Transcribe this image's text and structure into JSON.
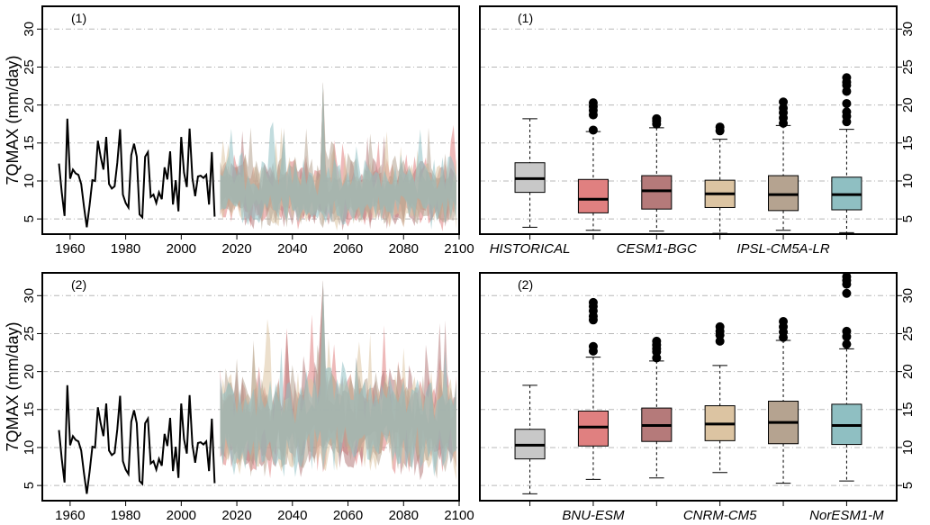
{
  "colors": {
    "historical": "#c8c8c8",
    "models": [
      "#e08080",
      "#b57a7a",
      "#dcc4a2",
      "#b5a390",
      "#8fbfc2"
    ],
    "series_line": "#000000"
  },
  "chart_data": [
    {
      "type": "line",
      "panel_label": "(1)",
      "ylabel": "7QMAX (mm/day)",
      "xlim": [
        1950,
        2100
      ],
      "ylim": [
        3,
        33
      ],
      "x_ticks": [
        1960,
        1980,
        2000,
        2020,
        2040,
        2060,
        2080,
        2100
      ],
      "y_ticks": [
        5,
        10,
        15,
        20,
        25,
        30
      ],
      "grid": true,
      "historical": {
        "x": [
          1956,
          1957,
          1958,
          1959,
          1960,
          1961,
          1962,
          1963,
          1964,
          1965,
          1966,
          1967,
          1968,
          1969,
          1970,
          1971,
          1972,
          1973,
          1974,
          1975,
          1976,
          1977,
          1978,
          1979,
          1980,
          1981,
          1982,
          1983,
          1984,
          1985,
          1986,
          1987,
          1988,
          1989,
          1990,
          1991,
          1992,
          1993,
          1994,
          1995,
          1996,
          1997,
          1998,
          1999,
          2000,
          2001,
          2002,
          2003,
          2004,
          2005,
          2006,
          2007,
          2008,
          2009,
          2010,
          2011,
          2012
        ],
        "y": [
          12.3,
          8.5,
          5.4,
          18.2,
          10.3,
          11.5,
          11.0,
          10.8,
          9.6,
          6.6,
          3.9,
          6.8,
          10.1,
          10.0,
          15.3,
          13.2,
          11.5,
          15.8,
          9.6,
          9.0,
          9.3,
          12.4,
          16.8,
          8.2,
          7.1,
          6.5,
          13.4,
          14.9,
          13.2,
          5.6,
          5.2,
          13.2,
          13.8,
          7.9,
          8.2,
          7.1,
          8.5,
          7.6,
          11.8,
          10.2,
          13.9,
          6.9,
          10.1,
          6.0,
          15.8,
          11.1,
          9.2,
          16.9,
          10.4,
          8.0,
          10.6,
          10.7,
          10.4,
          10.8,
          6.9,
          13.8,
          5.3
        ]
      },
      "projection_band": {
        "x_range": [
          2014,
          2099
        ],
        "n_models": 5,
        "center_level": 8.2,
        "spread": 4.0,
        "peak_max": 23.0
      }
    },
    {
      "type": "box",
      "panel_label": "(1)",
      "ylim": [
        3,
        33
      ],
      "y_ticks": [
        5,
        10,
        15,
        20,
        25,
        30
      ],
      "grid": true,
      "category_labels": [
        "HISTORICAL",
        "CESM1-BGC",
        "IPSL-CM5A-LR"
      ],
      "boxes": [
        {
          "min": 3.9,
          "q1": 8.5,
          "median": 10.3,
          "q3": 12.4,
          "max": 18.2,
          "outliers": []
        },
        {
          "min": 3.5,
          "q1": 5.8,
          "median": 7.6,
          "q3": 10.2,
          "max": 16.5,
          "outliers": [
            16.7,
            18.7,
            19.3,
            19.8,
            20.3
          ]
        },
        {
          "min": 3.4,
          "q1": 6.3,
          "median": 8.7,
          "q3": 10.7,
          "max": 17.0,
          "outliers": [
            17.5,
            17.9,
            18.2
          ]
        },
        {
          "min": 3.1,
          "q1": 6.5,
          "median": 8.3,
          "q3": 10.1,
          "max": 15.5,
          "outliers": [
            16.6,
            17.1
          ]
        },
        {
          "min": 3.5,
          "q1": 6.1,
          "median": 8.2,
          "q3": 10.7,
          "max": 17.3,
          "outliers": [
            17.6,
            18.3,
            19.0,
            19.6,
            20.4
          ]
        },
        {
          "min": 3.2,
          "q1": 6.2,
          "median": 8.2,
          "q3": 10.5,
          "max": 16.8,
          "outliers": [
            17.8,
            18.5,
            19.1,
            20.2,
            21.8,
            22.6,
            23.0,
            23.6
          ]
        }
      ]
    },
    {
      "type": "line",
      "panel_label": "(2)",
      "ylabel": "7QMAX (mm/day)",
      "xlim": [
        1950,
        2100
      ],
      "ylim": [
        3,
        33
      ],
      "x_ticks": [
        1960,
        1980,
        2000,
        2020,
        2040,
        2060,
        2080,
        2100
      ],
      "y_ticks": [
        5,
        10,
        15,
        20,
        25,
        30
      ],
      "grid": true,
      "historical": {
        "x": [
          1956,
          1957,
          1958,
          1959,
          1960,
          1961,
          1962,
          1963,
          1964,
          1965,
          1966,
          1967,
          1968,
          1969,
          1970,
          1971,
          1972,
          1973,
          1974,
          1975,
          1976,
          1977,
          1978,
          1979,
          1980,
          1981,
          1982,
          1983,
          1984,
          1985,
          1986,
          1987,
          1988,
          1989,
          1990,
          1991,
          1992,
          1993,
          1994,
          1995,
          1996,
          1997,
          1998,
          1999,
          2000,
          2001,
          2002,
          2003,
          2004,
          2005,
          2006,
          2007,
          2008,
          2009,
          2010,
          2011,
          2012
        ],
        "y": [
          12.3,
          8.5,
          5.4,
          18.2,
          10.3,
          11.5,
          11.0,
          10.8,
          9.6,
          6.6,
          3.9,
          6.8,
          10.1,
          10.0,
          15.3,
          13.2,
          11.5,
          15.8,
          9.6,
          9.0,
          9.3,
          12.4,
          16.8,
          8.2,
          7.1,
          6.5,
          13.4,
          14.9,
          13.2,
          5.6,
          5.2,
          13.2,
          13.8,
          7.9,
          8.2,
          7.1,
          8.5,
          7.6,
          11.8,
          10.2,
          13.9,
          6.9,
          10.1,
          6.0,
          15.8,
          11.1,
          9.2,
          16.9,
          10.4,
          8.0,
          10.6,
          10.7,
          10.4,
          10.8,
          6.9,
          13.8,
          5.3
        ]
      },
      "projection_band": {
        "x_range": [
          2014,
          2099
        ],
        "n_models": 5,
        "center_level": 13.0,
        "spread": 6.0,
        "peak_max": 32.0
      }
    },
    {
      "type": "box",
      "panel_label": "(2)",
      "ylim": [
        3,
        33
      ],
      "y_ticks": [
        5,
        10,
        15,
        20,
        25,
        30
      ],
      "grid": true,
      "category_labels": [
        "BNU-ESM",
        "CNRM-CM5",
        "NorESM1-M"
      ],
      "boxes": [
        {
          "min": 3.9,
          "q1": 8.5,
          "median": 10.3,
          "q3": 12.4,
          "max": 18.2,
          "outliers": []
        },
        {
          "min": 5.8,
          "q1": 10.2,
          "median": 12.7,
          "q3": 14.8,
          "max": 21.9,
          "outliers": [
            22.7,
            23.3,
            26.8,
            27.3,
            28.0,
            28.6,
            29.1
          ]
        },
        {
          "min": 6.0,
          "q1": 10.8,
          "median": 12.9,
          "q3": 15.2,
          "max": 21.4,
          "outliers": [
            21.8,
            22.6,
            23.0,
            23.5,
            24.0
          ]
        },
        {
          "min": 6.7,
          "q1": 10.9,
          "median": 13.1,
          "q3": 15.5,
          "max": 20.8,
          "outliers": [
            24.0,
            24.8,
            25.3,
            25.9
          ]
        },
        {
          "min": 5.3,
          "q1": 10.5,
          "median": 13.3,
          "q3": 16.1,
          "max": 24.1,
          "outliers": [
            24.5,
            25.2,
            25.9,
            26.6
          ]
        },
        {
          "min": 5.6,
          "q1": 10.4,
          "median": 12.9,
          "q3": 15.7,
          "max": 23.0,
          "outliers": [
            23.6,
            24.6,
            25.3,
            30.3,
            31.5,
            32.0,
            32.5
          ]
        }
      ]
    }
  ]
}
